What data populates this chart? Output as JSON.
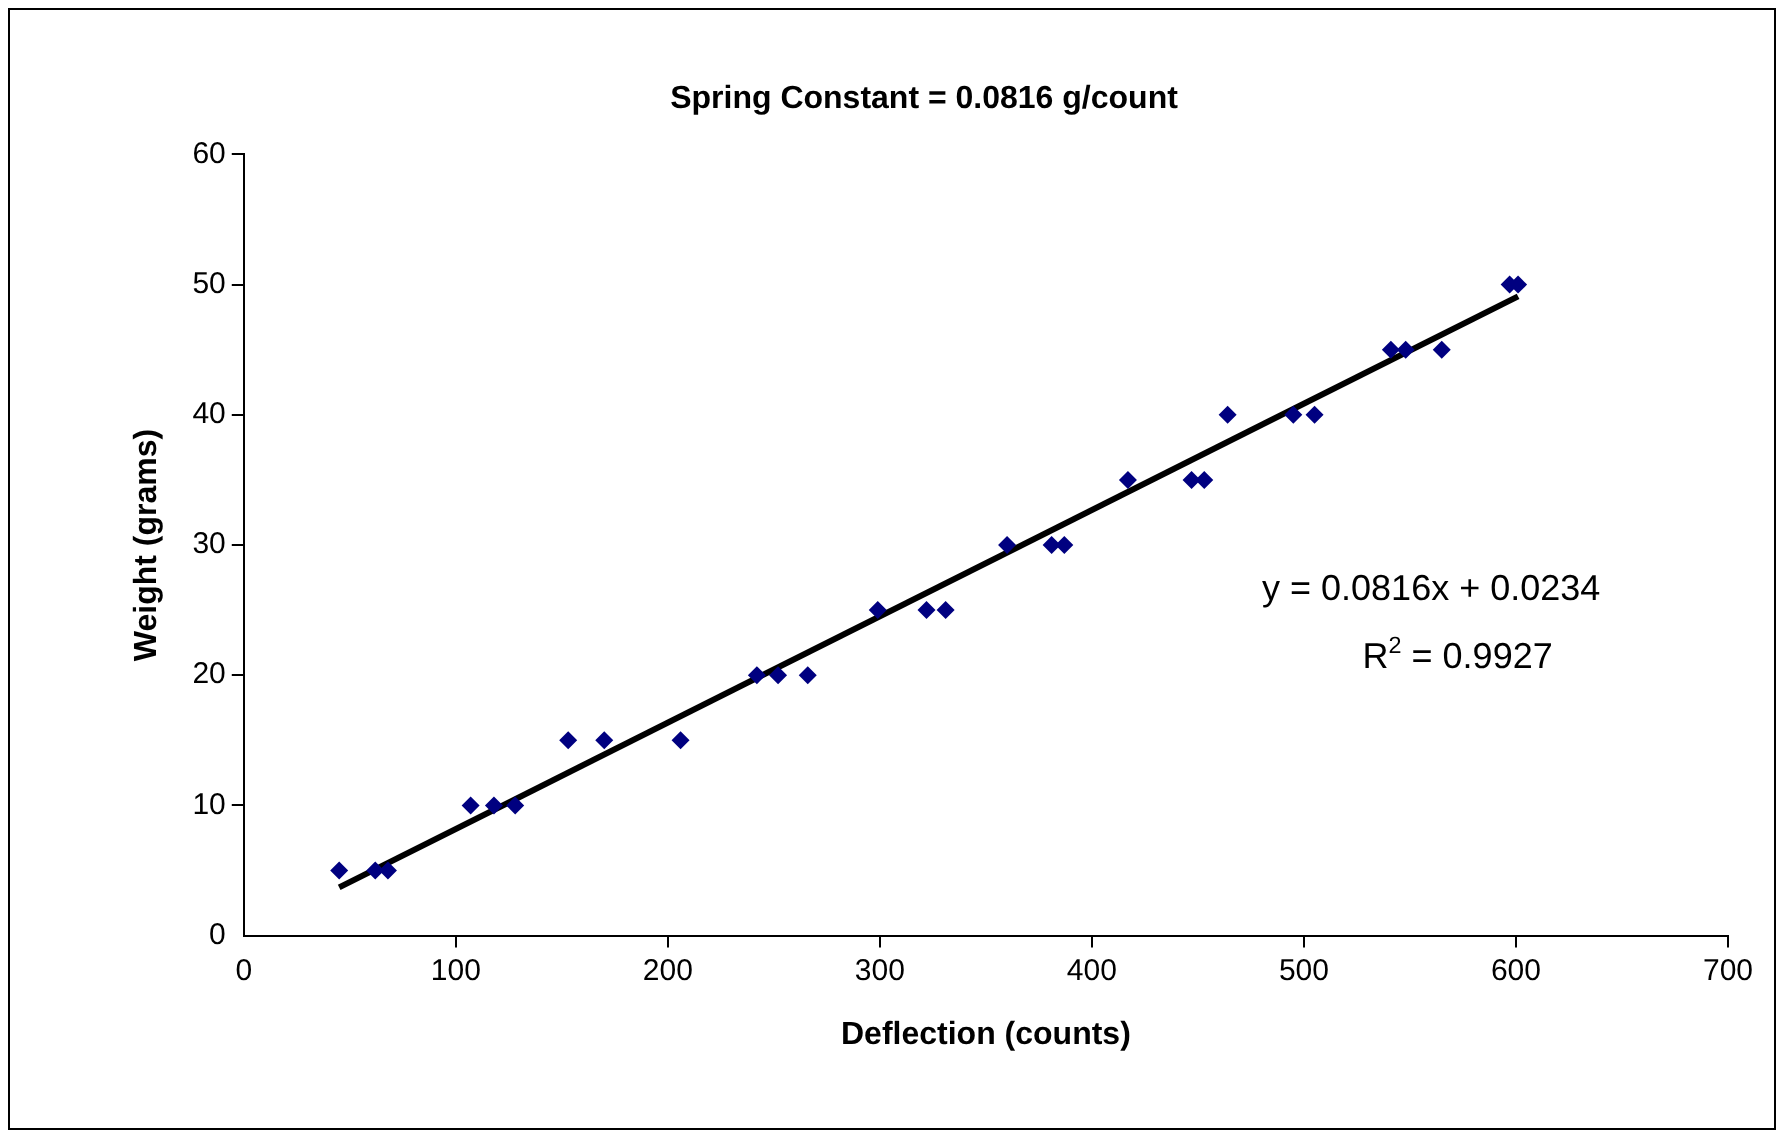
{
  "chart_data": {
    "type": "scatter",
    "title": "Spring Constant = 0.0816 g/count",
    "xlabel": "Deflection (counts)",
    "ylabel": "Weight (grams)",
    "xlim": [
      0,
      700
    ],
    "xticks": [
      0,
      100,
      200,
      300,
      400,
      500,
      600,
      700
    ],
    "ylim": [
      0,
      60
    ],
    "yticks": [
      0,
      10,
      20,
      30,
      40,
      50,
      60
    ],
    "grid": false,
    "legend": false,
    "marker": "diamond",
    "annotations": [
      "y = 0.0816x + 0.0234",
      "R$^{2}$ = 0.9927"
    ],
    "series": [
      {
        "type": "scatter",
        "color": "#000080",
        "x": [
          45,
          62,
          68,
          107,
          118,
          128,
          153,
          170,
          206,
          242,
          252,
          266,
          299,
          322,
          331,
          360,
          381,
          387,
          417,
          447,
          453,
          464,
          495,
          505,
          541,
          548,
          565,
          597,
          601
        ],
        "values": [
          5,
          5,
          5,
          10,
          10,
          10,
          15,
          15,
          15,
          20,
          20,
          20,
          25,
          25,
          25,
          30,
          30,
          30,
          35,
          35,
          35,
          40,
          40,
          40,
          45,
          45,
          45,
          50,
          50
        ]
      },
      {
        "type": "line",
        "color": "#000000",
        "x": [
          45,
          601
        ],
        "values": [
          3.7,
          49.1
        ],
        "marker": "none",
        "line_style": "solid"
      }
    ]
  }
}
